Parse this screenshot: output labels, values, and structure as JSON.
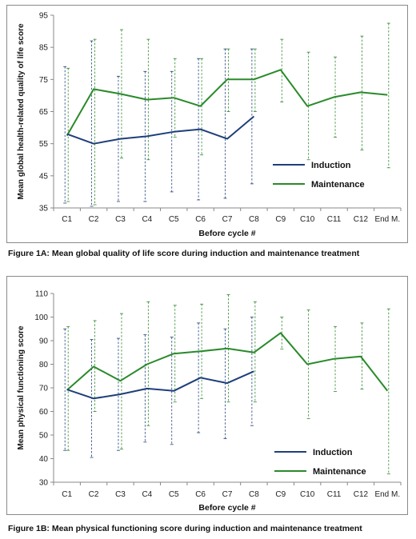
{
  "chart_data": [
    {
      "type": "line",
      "ylabel": "Mean global health-related quality of life score",
      "xlabel": "Before cycle #",
      "ylim": [
        35,
        95
      ],
      "yticks": [
        35,
        45,
        55,
        65,
        75,
        85,
        95
      ],
      "categories": [
        "C1",
        "C2",
        "C3",
        "C4",
        "C5",
        "C6",
        "C7",
        "C8",
        "C9",
        "C10",
        "C11",
        "C12",
        "End M."
      ],
      "legend_position": "bottom-right",
      "grid": false,
      "series": [
        {
          "name": "Induction",
          "color": "#1f3f7a",
          "values": [
            58,
            55,
            56.5,
            57.3,
            58.7,
            59.5,
            56.5,
            63.5,
            null,
            null,
            null,
            null,
            null
          ],
          "error_low": [
            36.5,
            35.5,
            37,
            37,
            40,
            37.5,
            38,
            42.5,
            null,
            null,
            null,
            null,
            null
          ],
          "error_high": [
            79,
            87,
            76,
            77.5,
            77.5,
            81.5,
            84.5,
            84.5,
            null,
            null,
            null,
            null,
            null
          ]
        },
        {
          "name": "Maintenance",
          "color": "#2a8a2a",
          "values": [
            57.5,
            72,
            70.5,
            68.7,
            69.3,
            66.7,
            75,
            75,
            78,
            66.7,
            69.5,
            71,
            70.2
          ],
          "error_low": [
            37,
            36,
            50.5,
            50,
            57,
            51.5,
            65,
            65,
            68,
            50,
            57,
            53,
            47.5
          ],
          "error_high": [
            78.5,
            87.5,
            90.5,
            87.5,
            81.5,
            81.5,
            84.5,
            84.5,
            87.5,
            83.5,
            82,
            88.5,
            92.5
          ]
        }
      ],
      "caption": "Figure 1A:  Mean global quality of life score during induction and maintenance treatment"
    },
    {
      "type": "line",
      "ylabel": "Mean physical functioning score",
      "xlabel": "Before cycle #",
      "ylim": [
        30,
        110
      ],
      "yticks": [
        30,
        40,
        50,
        60,
        70,
        80,
        90,
        100,
        110
      ],
      "categories": [
        "C1",
        "C2",
        "C3",
        "C4",
        "C5",
        "C6",
        "C7",
        "C8",
        "C9",
        "C10",
        "C11",
        "C12",
        "End M."
      ],
      "legend_position": "bottom-right",
      "grid": false,
      "series": [
        {
          "name": "Induction",
          "color": "#1f3f7a",
          "values": [
            69.3,
            65.5,
            67.3,
            69.7,
            68.7,
            74.3,
            72,
            77,
            null,
            null,
            null,
            null,
            null
          ],
          "error_low": [
            43.5,
            40.5,
            43.5,
            47,
            46,
            51,
            48.5,
            54,
            null,
            null,
            null,
            null,
            null
          ],
          "error_high": [
            95,
            90.5,
            91,
            92.5,
            91.5,
            97.5,
            95,
            100,
            null,
            null,
            null,
            null,
            null
          ]
        },
        {
          "name": "Maintenance",
          "color": "#2a8a2a",
          "values": [
            69,
            79,
            73,
            80,
            84.5,
            85.5,
            86.7,
            85,
            93.3,
            80,
            82.3,
            83.3,
            68.7
          ],
          "error_low": [
            43.5,
            60,
            44,
            54,
            64,
            65.5,
            64,
            64,
            86.5,
            57,
            68.5,
            69.5,
            33.5
          ],
          "error_high": [
            96,
            98.5,
            101.5,
            106.5,
            105,
            105.5,
            109.5,
            106.5,
            100,
            103,
            96,
            97.5,
            103.5
          ]
        }
      ],
      "caption": "Figure 1B:  Mean physical functioning score during induction and maintenance treatment"
    }
  ]
}
